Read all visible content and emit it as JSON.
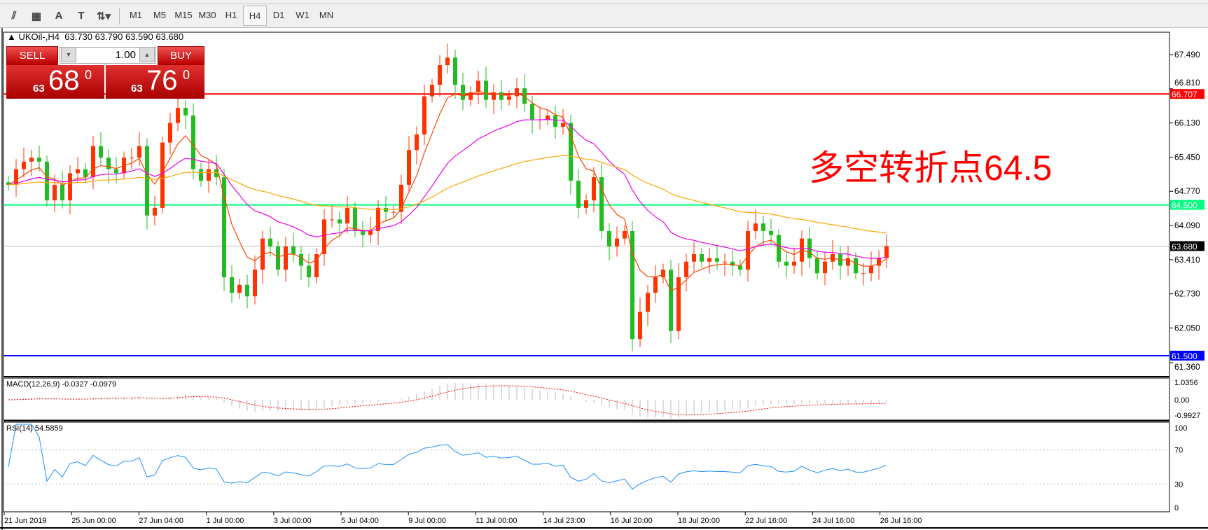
{
  "toolbar": {
    "icons": [
      "chart-tools-icon",
      "grid-icon",
      "text-icon",
      "text-label-icon",
      "arrows-icon"
    ],
    "timeframes": [
      "M1",
      "M5",
      "M15",
      "M30",
      "H1",
      "H4",
      "D1",
      "W1",
      "MN"
    ],
    "active": "H4"
  },
  "header": {
    "symbol": "UKOil-,H4",
    "ohlc": "63.730 63.790 63.590 63.680"
  },
  "trade": {
    "sell_label": "SELL",
    "buy_label": "BUY",
    "lot": "1.00",
    "sell_small": "63",
    "sell_big": "68",
    "sell_sup": "0",
    "buy_small": "63",
    "buy_big": "76",
    "buy_sup": "0"
  },
  "annotation": "多空转折点64.5",
  "macd_label": "MACD(12,26,9) -0.0327 -0.0979",
  "rsi_label": "RSI(14) 54.5859",
  "chart_data": {
    "type": "candlestick",
    "price_ticks": [
      "67.490",
      "66.810",
      "66.130",
      "65.450",
      "64.770",
      "64.090",
      "63.410",
      "62.730",
      "62.050",
      "61.360"
    ],
    "ylim": [
      61.36,
      67.49
    ],
    "hlines": [
      {
        "value": 66.707,
        "label": "66.707",
        "color": "#ff0000"
      },
      {
        "value": 64.5,
        "label": "64.500",
        "color": "#00ff7f"
      },
      {
        "value": 61.5,
        "label": "61.500",
        "color": "#0000ff"
      }
    ],
    "current": {
      "value": 63.68,
      "label": "63.680"
    },
    "up_color": "#ff3300",
    "down_color": "#22bb22",
    "ma_colors": [
      "#ff4500",
      "#ee00ee",
      "#ffa500"
    ],
    "closes": [
      64.9,
      65.21,
      65.36,
      65.44,
      65.36,
      64.59,
      64.9,
      64.59,
      65.13,
      65.21,
      65.05,
      65.67,
      65.44,
      65.21,
      65.13,
      65.44,
      65.44,
      65.67,
      64.29,
      64.44,
      65.74,
      66.13,
      66.43,
      66.28,
      65.21,
      64.98,
      65.21,
      65.05,
      63.06,
      62.75,
      62.91,
      62.68,
      63.21,
      63.83,
      63.67,
      63.21,
      63.67,
      63.52,
      63.29,
      63.06,
      63.52,
      64.21,
      64.21,
      64.13,
      64.44,
      63.98,
      63.9,
      63.98,
      64.44,
      64.36,
      64.36,
      64.9,
      65.59,
      65.9,
      66.66,
      66.89,
      67.28,
      67.43,
      66.89,
      66.59,
      66.74,
      66.97,
      66.59,
      66.74,
      66.59,
      66.66,
      66.82,
      66.51,
      66.2,
      66.2,
      66.28,
      66.05,
      66.13,
      64.98,
      64.44,
      64.59,
      65.05,
      63.98,
      63.67,
      63.83,
      63.98,
      61.83,
      62.37,
      62.75,
      63.06,
      63.21,
      61.99,
      63.06,
      63.37,
      63.52,
      63.37,
      63.44,
      63.37,
      63.37,
      63.29,
      63.21,
      63.98,
      64.13,
      63.98,
      63.9,
      63.37,
      63.29,
      63.37,
      63.83,
      63.44,
      63.14,
      63.37,
      63.52,
      63.29,
      63.44,
      63.14,
      63.14,
      63.29,
      63.44,
      63.68
    ],
    "macd_ticks": [
      "1.0356",
      "0.00",
      "-0.9927"
    ],
    "rsi_ticks": [
      "100",
      "70",
      "30",
      "0"
    ],
    "time_labels": [
      "21 Jun 2019",
      "25 Jun 00:00",
      "27 Jun 04:00",
      "1 Jul 00:00",
      "3 Jul 00:00",
      "5 Jul 04:00",
      "9 Jul 00:00",
      "11 Jul 00:00",
      "14 Jul 23:00",
      "16 Jul 20:00",
      "18 Jul 20:00",
      "22 Jul 16:00",
      "24 Jul 16:00",
      "26 Jul 16:00"
    ]
  }
}
